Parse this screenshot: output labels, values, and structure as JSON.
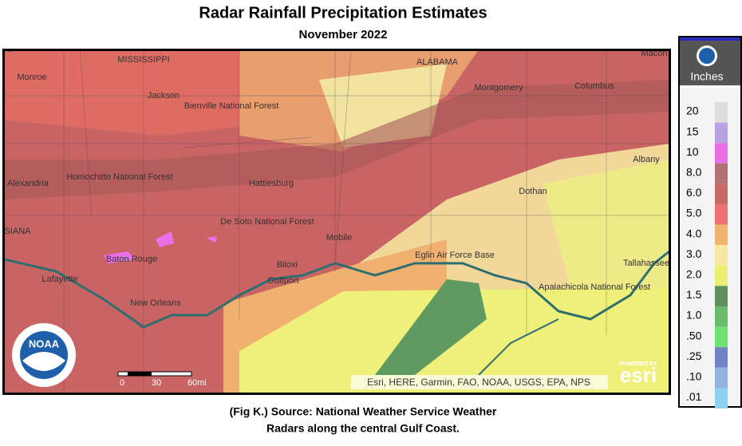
{
  "header": {
    "title": "Radar Rainfall Precipitation Estimates",
    "subtitle": "November 2022"
  },
  "map": {
    "labels": [
      "MISSISSIPPI",
      "ALABAMA",
      "Monroe",
      "Jackson",
      "Bienville National Forest",
      "Montgomery",
      "Columbus",
      "Macon",
      "Homochitto National Forest",
      "Alexandria",
      "Hattiesburg",
      "Albany",
      "Dothan",
      "De Soto National Forest",
      "SIANA",
      "Mobile",
      "Baton Rouge",
      "Biloxi",
      "Gulfport",
      "Eglin Air Force Base",
      "Tallahassee",
      "Lafayette",
      "Apalachicola National Forest",
      "New Orleans"
    ],
    "scale": [
      "0",
      "30",
      "60mi"
    ],
    "attribution": "Esri, HERE, Garmin, FAO, NOAA, USGS, EPA, NPS",
    "noaa": "NOAA",
    "esri_small": "POWERED BY",
    "esri": "esri"
  },
  "legend": {
    "unit": "Inches",
    "items": [
      {
        "label": "20",
        "color": "#dcdcdc"
      },
      {
        "label": "15",
        "color": "#b9a2e2"
      },
      {
        "label": "10",
        "color": "#ea6fe8"
      },
      {
        "label": "8.0",
        "color": "#b07272"
      },
      {
        "label": "6.0",
        "color": "#c86a6a"
      },
      {
        "label": "5.0",
        "color": "#ec7272"
      },
      {
        "label": "4.0",
        "color": "#f0b46e"
      },
      {
        "label": "3.0",
        "color": "#f5e7a0"
      },
      {
        "label": "2.0",
        "color": "#eaee72"
      },
      {
        "label": "1.5",
        "color": "#5f8f5f"
      },
      {
        "label": "1.0",
        "color": "#6cbc6c"
      },
      {
        "label": ".50",
        "color": "#6ee26e"
      },
      {
        "label": ".25",
        "color": "#7284c8"
      },
      {
        "label": ".10",
        "color": "#92b2e2"
      },
      {
        "label": ".01",
        "color": "#8ad2f0"
      }
    ]
  },
  "caption": [
    "(Fig K.) Source: National Weather Service Weather",
    "Radars along the central Gulf Coast."
  ]
}
